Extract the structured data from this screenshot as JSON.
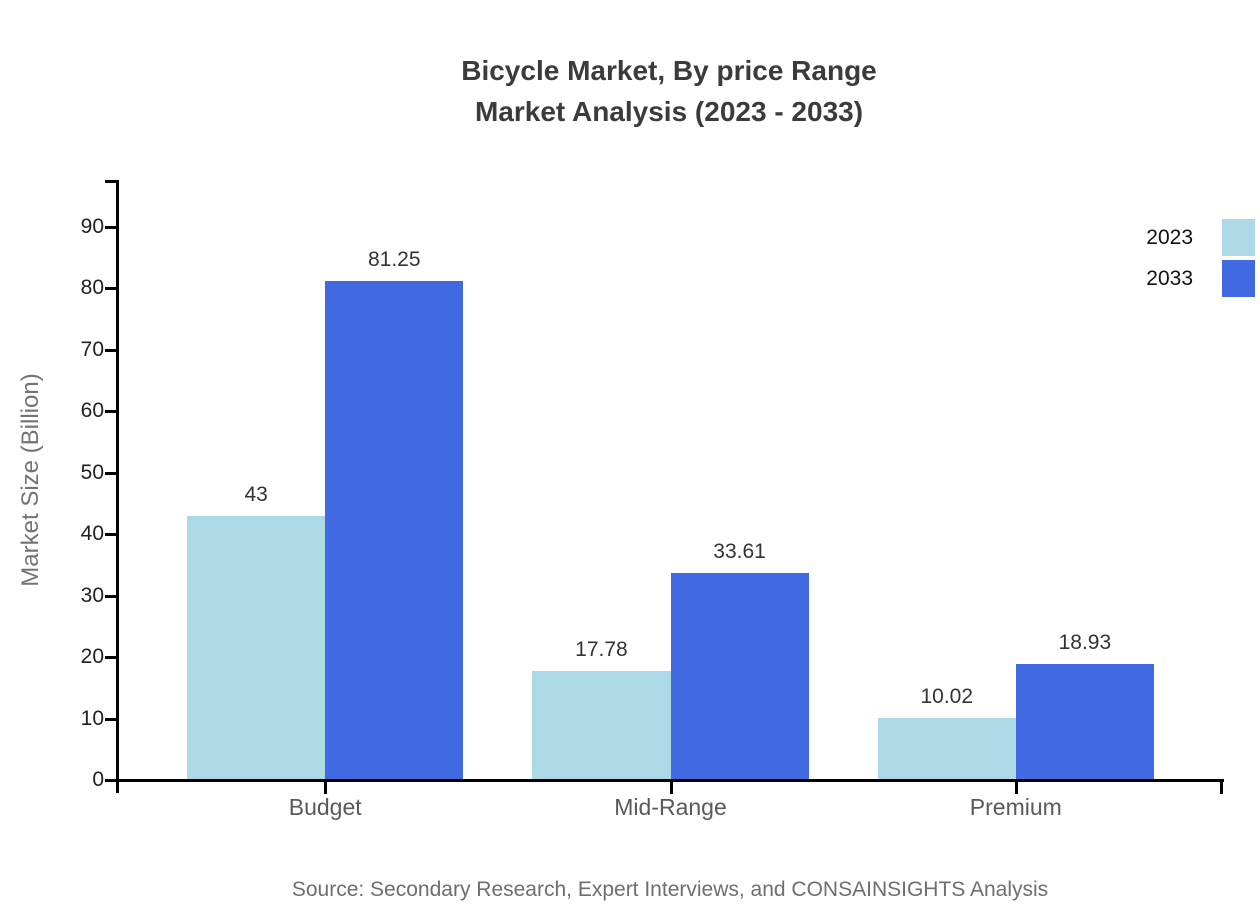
{
  "title": {
    "line1": "Bicycle Market, By price Range",
    "line2": "Market Analysis (2023 - 2033)"
  },
  "chart_data": {
    "type": "bar",
    "title": "Bicycle Market, By price Range Market Analysis (2023 - 2033)",
    "categories": [
      "Budget",
      "Mid-Range",
      "Premium"
    ],
    "series": [
      {
        "name": "2023",
        "color": "#ADD8E6",
        "values": [
          43,
          17.78,
          10.02
        ],
        "value_labels": [
          "43",
          "17.78",
          "10.02"
        ]
      },
      {
        "name": "2033",
        "color": "#4169E1",
        "values": [
          81.25,
          33.61,
          18.93
        ],
        "value_labels": [
          "81.25",
          "33.61",
          "18.93"
        ]
      }
    ],
    "xlabel": "",
    "ylabel": "Market Size (Billion)",
    "yticks": [
      0,
      10,
      20,
      30,
      40,
      50,
      60,
      70,
      80,
      90
    ],
    "ylim": [
      0,
      97.6
    ],
    "grid": false,
    "legend_position": "top-right"
  },
  "footer": {
    "source": "Source: Secondary Research, Expert Interviews, and CONSAINSIGHTS Analysis"
  },
  "colors": {
    "series_2023": "#ADD8E6",
    "series_2033": "#4169E1",
    "title_text": "#3b3b3b",
    "axis": "#000000",
    "tick_label": "#1f1f1f",
    "category_label": "#595959",
    "muted_text": "#6e6e6e",
    "background": "#ffffff"
  }
}
